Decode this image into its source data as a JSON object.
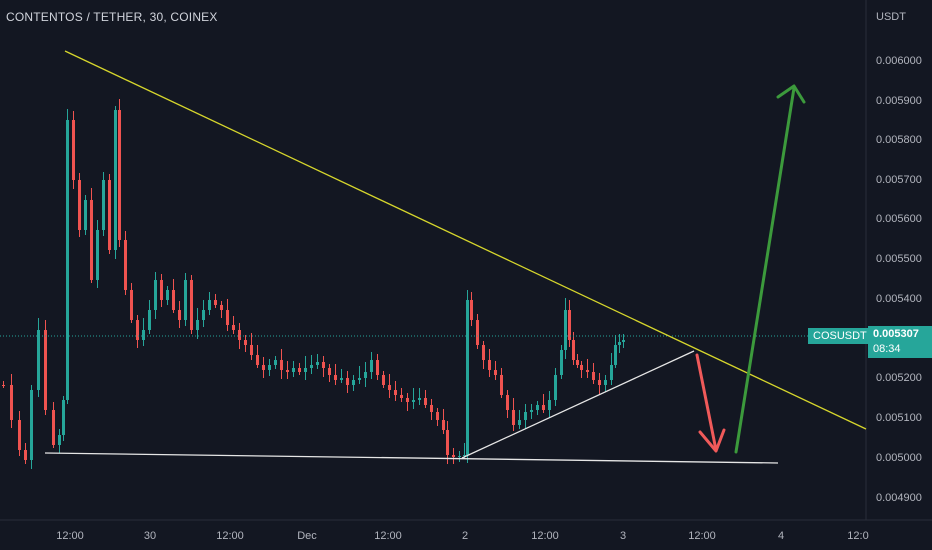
{
  "header": {
    "title": "CONTENTOS / TETHER, 30, COINEX"
  },
  "price_axis": {
    "currency": "USDT",
    "ticks": [
      "0.006000",
      "0.005900",
      "0.005800",
      "0.005700",
      "0.005600",
      "0.005500",
      "0.005400",
      "0.005200",
      "0.005100",
      "0.005000",
      "0.004900"
    ]
  },
  "time_axis": {
    "ticks": [
      "12:00",
      "30",
      "12:00",
      "Dec",
      "12:00",
      "2",
      "12:00",
      "3",
      "12:00",
      "4",
      "12:0"
    ]
  },
  "current_price": {
    "symbol": "COSUSDT",
    "price": "0.005307",
    "countdown": "08:34"
  },
  "colors": {
    "background": "#131722",
    "up_candle": "#26a69a",
    "down_candle": "#ef5350",
    "resistance_line": "#d6d62c",
    "support_line": "#e6e6e6",
    "arrow_down": "#f05a5a",
    "arrow_up": "#3c9a3c"
  }
}
